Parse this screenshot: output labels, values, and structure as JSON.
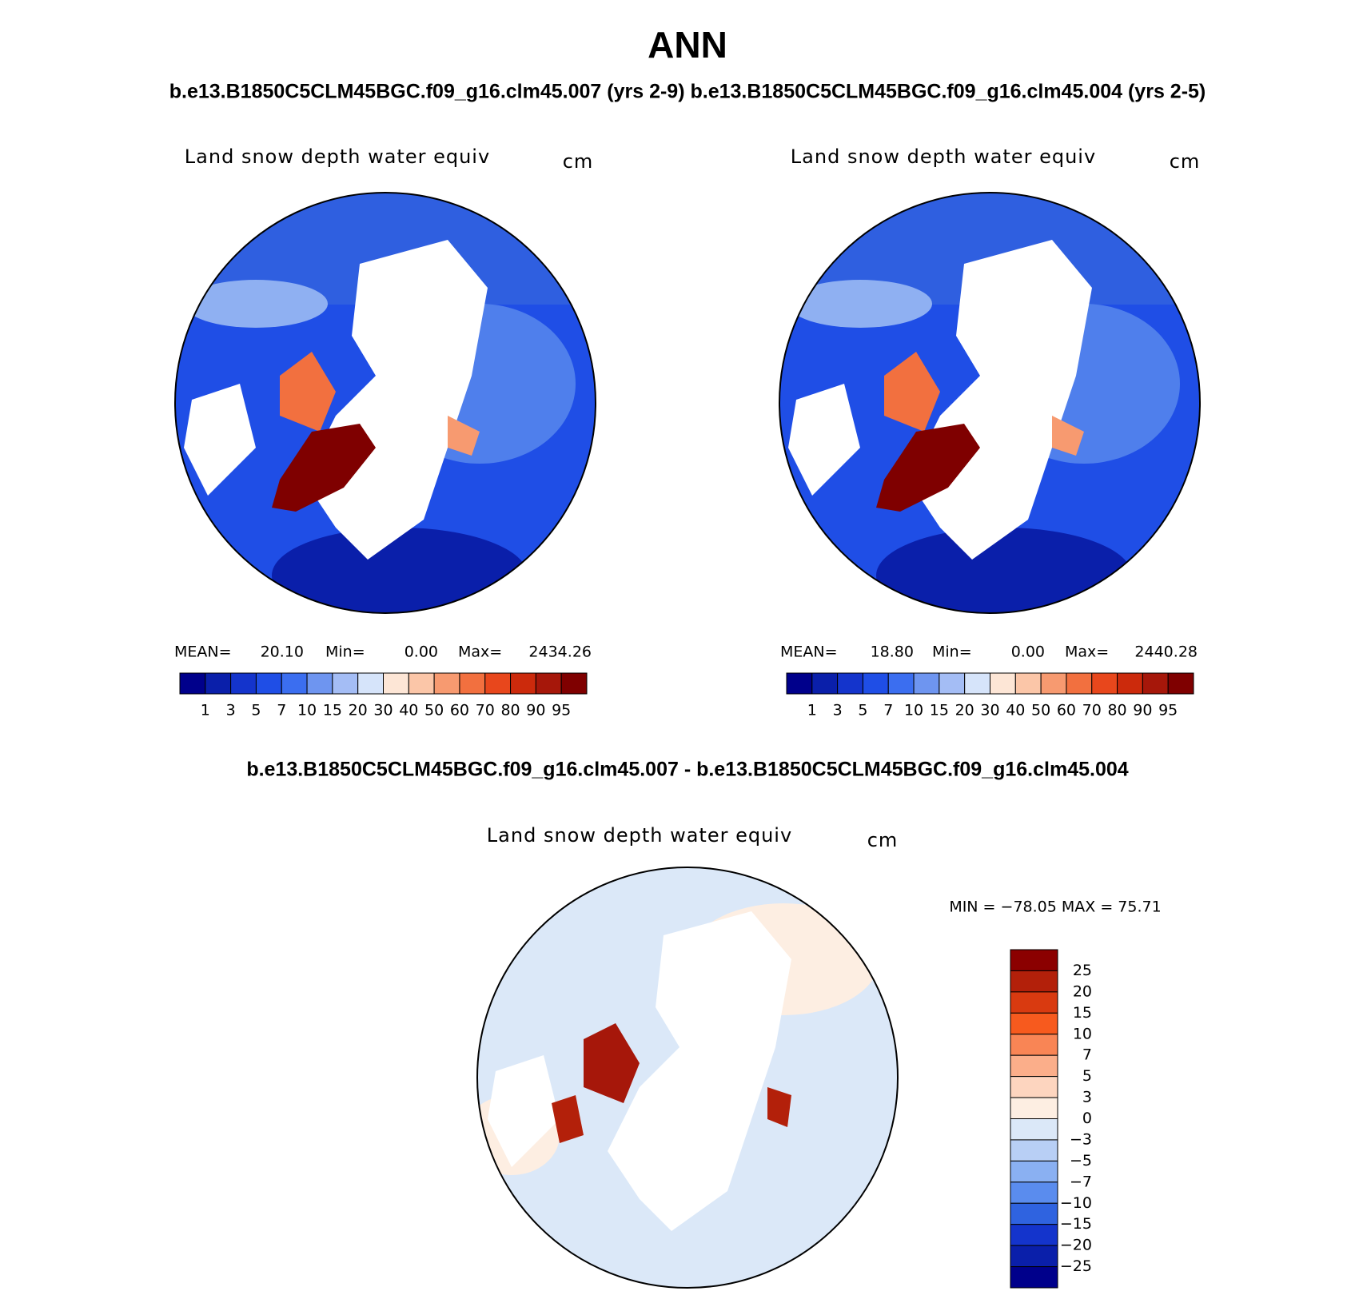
{
  "header": {
    "title": "ANN",
    "subtitle": "b.e13.B1850C5CLM45BGC.f09_g16.clm45.007 (yrs 2-9) b.e13.B1850C5CLM45BGC.f09_g16.clm45.004 (yrs 2-5)"
  },
  "panels": [
    {
      "title": "Land snow depth water equiv",
      "units": "cm",
      "mean_label": "MEAN=",
      "mean": "20.10",
      "min_label": "Min=",
      "min": "0.00",
      "max_label": "Max=",
      "max": "2434.26"
    },
    {
      "title": "Land snow depth water equiv",
      "units": "cm",
      "mean_label": "MEAN=",
      "mean": "18.80",
      "min_label": "Min=",
      "min": "0.00",
      "max_label": "Max=",
      "max": "2440.28"
    }
  ],
  "colorbar": {
    "labels": [
      "1",
      "3",
      "5",
      "7",
      "10",
      "15",
      "20",
      "30",
      "40",
      "50",
      "60",
      "70",
      "80",
      "90",
      "95"
    ],
    "colors": [
      "#00008b",
      "#0a1faa",
      "#1434cc",
      "#1f4ee6",
      "#3b6ef0",
      "#6e95f0",
      "#a4bdf5",
      "#d6e4fa",
      "#fde6d6",
      "#fbc6a8",
      "#f79a70",
      "#f2703f",
      "#e8471c",
      "#cc2a0c",
      "#a6170a",
      "#7f0000"
    ]
  },
  "difference": {
    "title": "b.e13.B1850C5CLM45BGC.f09_g16.clm45.007 - b.e13.B1850C5CLM45BGC.f09_g16.clm45.004",
    "map_title": "Land snow depth water equiv",
    "units": "cm",
    "minmax": "MIN = −78.05 MAX =   75.71",
    "colorbar": {
      "labels": [
        "25",
        "20",
        "15",
        "10",
        "7",
        "5",
        "3",
        "0",
        "−3",
        "−5",
        "−7",
        "−10",
        "−15",
        "−20",
        "−25"
      ],
      "colors": [
        "#8b0000",
        "#b3200a",
        "#d93a10",
        "#f75a1e",
        "#f98555",
        "#fbae8a",
        "#fdd5bf",
        "#fdeee2",
        "#dbe8f8",
        "#b8cff5",
        "#8ab0f2",
        "#5a8cee",
        "#2f63e0",
        "#1434cc",
        "#0a1faa",
        "#00008b"
      ]
    }
  }
}
